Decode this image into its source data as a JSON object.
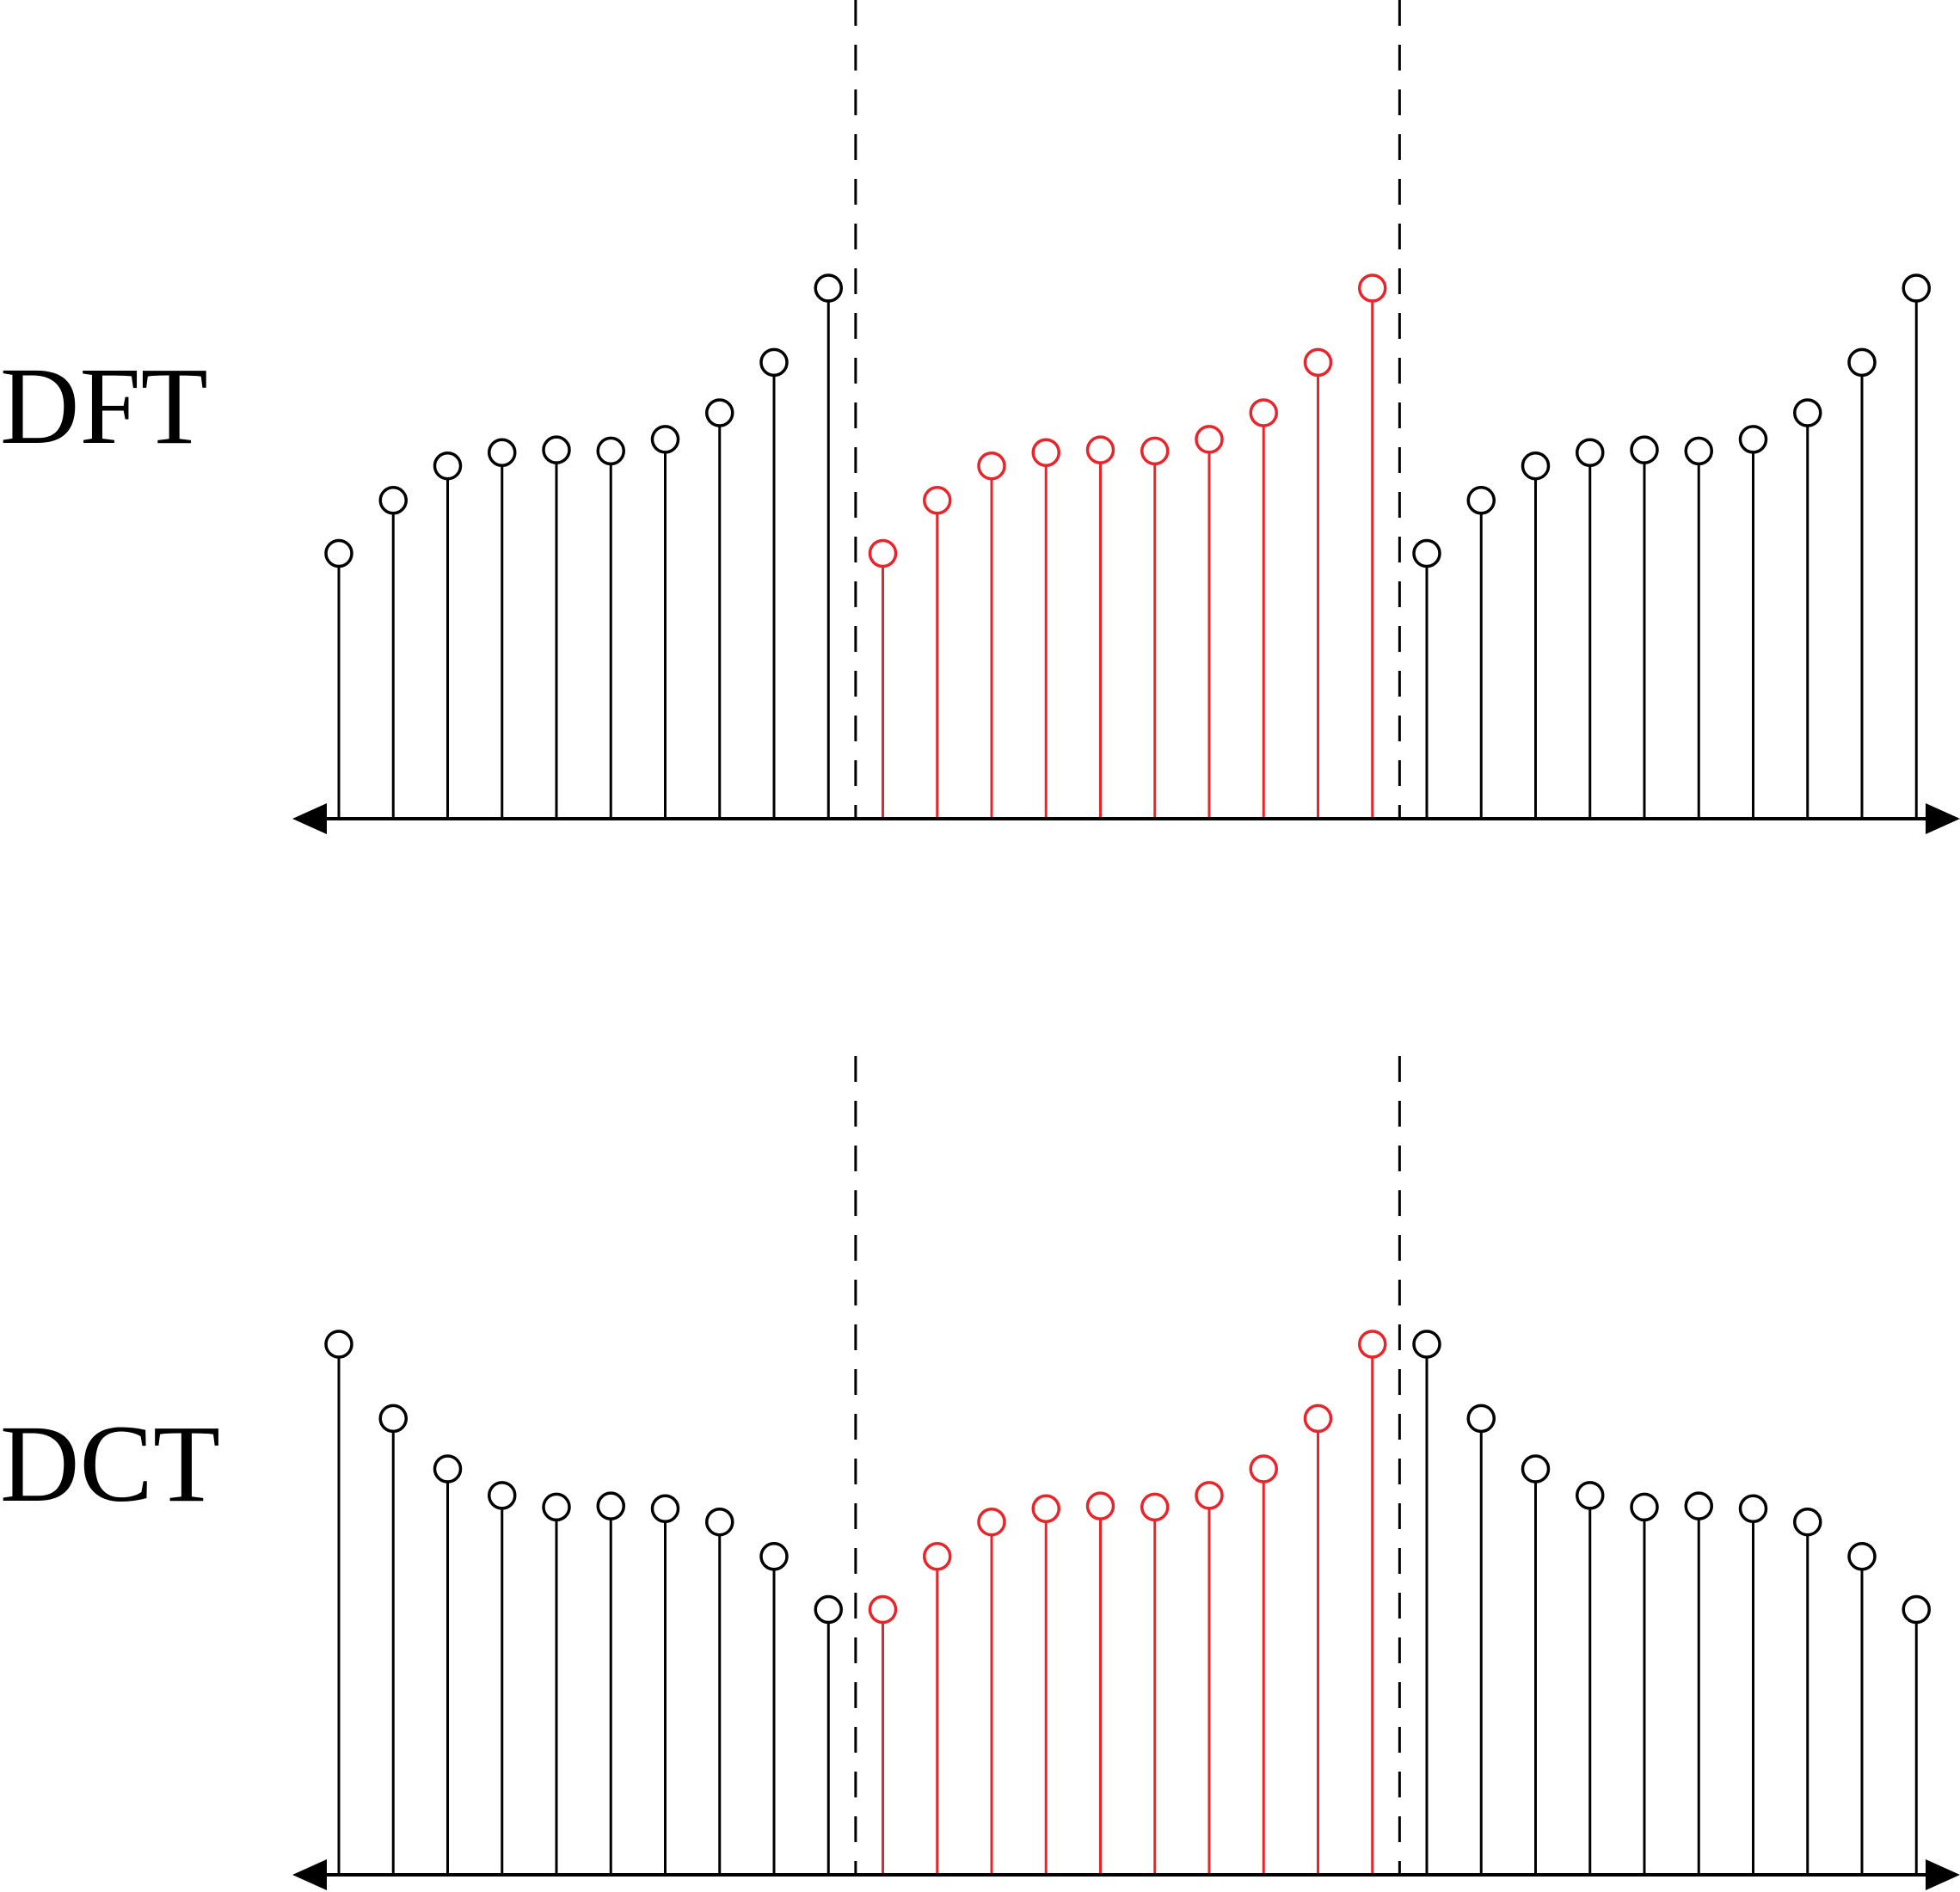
{
  "labels": {
    "dft": "DFT",
    "dct": "DCT"
  },
  "colors": {
    "stem": "#000000",
    "highlight": "#e8252b",
    "background": "#ffffff"
  },
  "panels": [
    {
      "id": "dft",
      "periods": [
        {
          "highlight": false,
          "values": [
            0.5,
            0.6,
            0.665,
            0.69,
            0.695,
            0.693,
            0.715,
            0.765,
            0.86,
            1.0
          ]
        },
        {
          "highlight": true,
          "values": [
            0.5,
            0.6,
            0.665,
            0.69,
            0.695,
            0.693,
            0.715,
            0.765,
            0.86,
            1.0
          ]
        },
        {
          "highlight": false,
          "values": [
            0.5,
            0.6,
            0.665,
            0.69,
            0.695,
            0.693,
            0.715,
            0.765,
            0.86,
            1.0
          ]
        }
      ]
    },
    {
      "id": "dct",
      "periods": [
        {
          "highlight": false,
          "values": [
            1.0,
            0.86,
            0.765,
            0.715,
            0.693,
            0.695,
            0.69,
            0.665,
            0.6,
            0.5
          ]
        },
        {
          "highlight": true,
          "values": [
            0.5,
            0.6,
            0.665,
            0.69,
            0.695,
            0.693,
            0.715,
            0.765,
            0.86,
            1.0
          ]
        },
        {
          "highlight": false,
          "values": [
            1.0,
            0.86,
            0.765,
            0.715,
            0.693,
            0.695,
            0.69,
            0.665,
            0.6,
            0.5
          ]
        }
      ]
    }
  ]
}
